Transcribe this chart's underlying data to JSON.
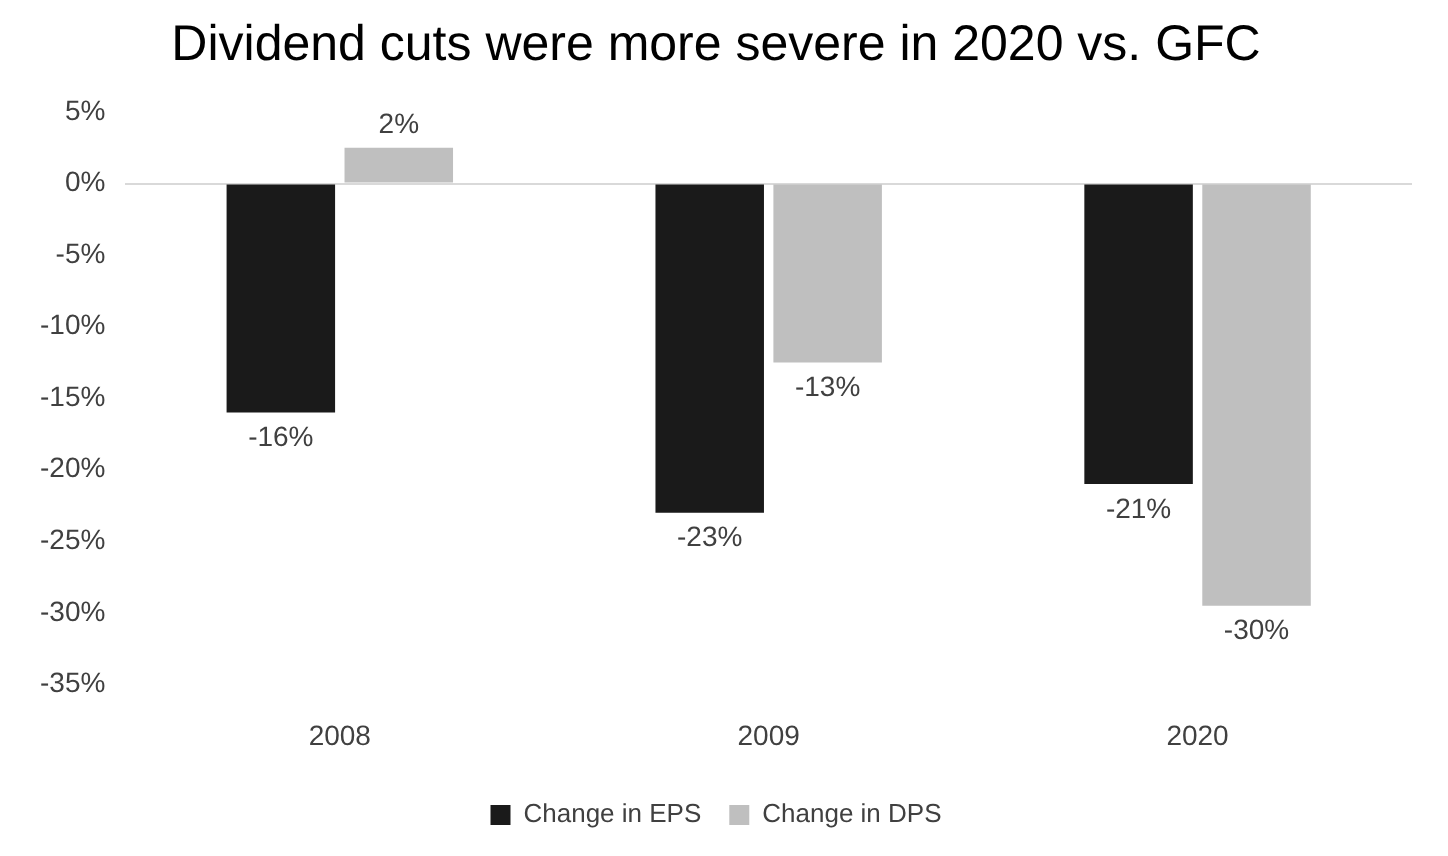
{
  "chart_data": {
    "type": "bar",
    "title": "Dividend cuts were more severe in 2020 vs. GFC",
    "categories": [
      "2008",
      "2009",
      "2020"
    ],
    "series": [
      {
        "name": "Change in EPS",
        "color": "#1a1a1a",
        "values": [
          -16,
          -23,
          -21
        ],
        "value_labels": [
          "-16%",
          "-23%",
          "-21%"
        ]
      },
      {
        "name": "Change in DPS",
        "color": "#bfbfbf",
        "values": [
          2.5,
          -12.5,
          -29.5
        ],
        "value_labels": [
          "2%",
          "-13%",
          "-30%"
        ]
      }
    ],
    "ylim": [
      -35,
      5
    ],
    "yticks": [
      {
        "value": 5,
        "label": "5%"
      },
      {
        "value": 0,
        "label": "0%"
      },
      {
        "value": -5,
        "label": "-5%"
      },
      {
        "value": -10,
        "label": "-10%"
      },
      {
        "value": -15,
        "label": "-15%"
      },
      {
        "value": -20,
        "label": "-20%"
      },
      {
        "value": -25,
        "label": "-25%"
      },
      {
        "value": -30,
        "label": "-30%"
      },
      {
        "value": -35,
        "label": "-35%"
      }
    ],
    "legend": "bottom"
  }
}
